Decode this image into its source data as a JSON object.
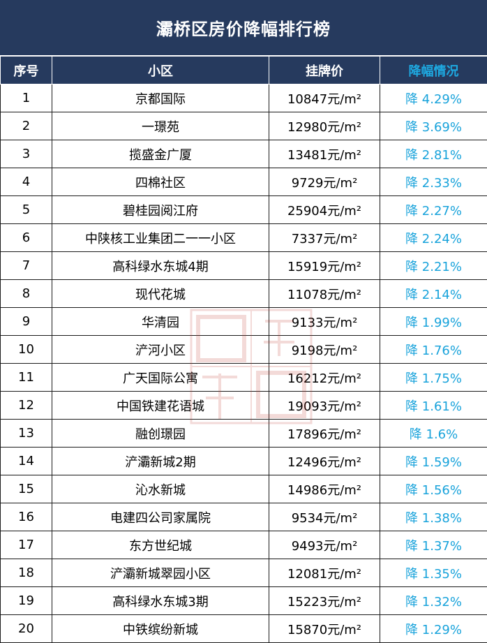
{
  "title": "灞桥区房价降幅排行榜",
  "headers": {
    "rank": "序号",
    "community": "小区",
    "price": "挂牌价",
    "drop": "降幅情况"
  },
  "rows": [
    {
      "rank": "1",
      "community": "京都国际",
      "price": "10847元/m²",
      "drop": "降 4.29%"
    },
    {
      "rank": "2",
      "community": "一璟苑",
      "price": "12980元/m²",
      "drop": "降 3.69%"
    },
    {
      "rank": "3",
      "community": "揽盛金广厦",
      "price": "13481元/m²",
      "drop": "降 2.81%"
    },
    {
      "rank": "4",
      "community": "四棉社区",
      "price": "9729元/m²",
      "drop": "降 2.33%"
    },
    {
      "rank": "5",
      "community": "碧桂园阅江府",
      "price": "25904元/m²",
      "drop": "降 2.27%"
    },
    {
      "rank": "6",
      "community": "中陕核工业集团二一一小区",
      "price": "7337元/m²",
      "drop": "降 2.24%"
    },
    {
      "rank": "7",
      "community": "高科绿水东城4期",
      "price": "15919元/m²",
      "drop": "降 2.21%"
    },
    {
      "rank": "8",
      "community": "现代花城",
      "price": "11078元/m²",
      "drop": "降 2.14%"
    },
    {
      "rank": "9",
      "community": "华清园",
      "price": "9133元/m²",
      "drop": "降 1.99%"
    },
    {
      "rank": "10",
      "community": "浐河小区",
      "price": "9198元/m²",
      "drop": "降 1.76%"
    },
    {
      "rank": "11",
      "community": "广天国际公寓",
      "price": "16212元/m²",
      "drop": "降 1.75%"
    },
    {
      "rank": "12",
      "community": "中国铁建花语城",
      "price": "19093元/m²",
      "drop": "降 1.61%"
    },
    {
      "rank": "13",
      "community": "融创璟园",
      "price": "17896元/m²",
      "drop": "降 1.6%"
    },
    {
      "rank": "14",
      "community": "浐灞新城2期",
      "price": "12496元/m²",
      "drop": "降 1.59%"
    },
    {
      "rank": "15",
      "community": "沁水新城",
      "price": "14986元/m²",
      "drop": "降 1.56%"
    },
    {
      "rank": "16",
      "community": "电建四公司家属院",
      "price": "9534元/m²",
      "drop": "降 1.38%"
    },
    {
      "rank": "17",
      "community": "东方世纪城",
      "price": "9493元/m²",
      "drop": "降 1.37%"
    },
    {
      "rank": "18",
      "community": "浐灞新城翠园小区",
      "price": "12081元/m²",
      "drop": "降 1.35%"
    },
    {
      "rank": "19",
      "community": "高科绿水东城3期",
      "price": "15223元/m²",
      "drop": "降 1.32%"
    },
    {
      "rank": "20",
      "community": "中铁缤纷新城",
      "price": "15870元/m²",
      "drop": "降 1.29%"
    }
  ],
  "colors": {
    "header_bg": "#263a5e",
    "drop_text": "#19a3db",
    "watermark": "#c0392b"
  }
}
